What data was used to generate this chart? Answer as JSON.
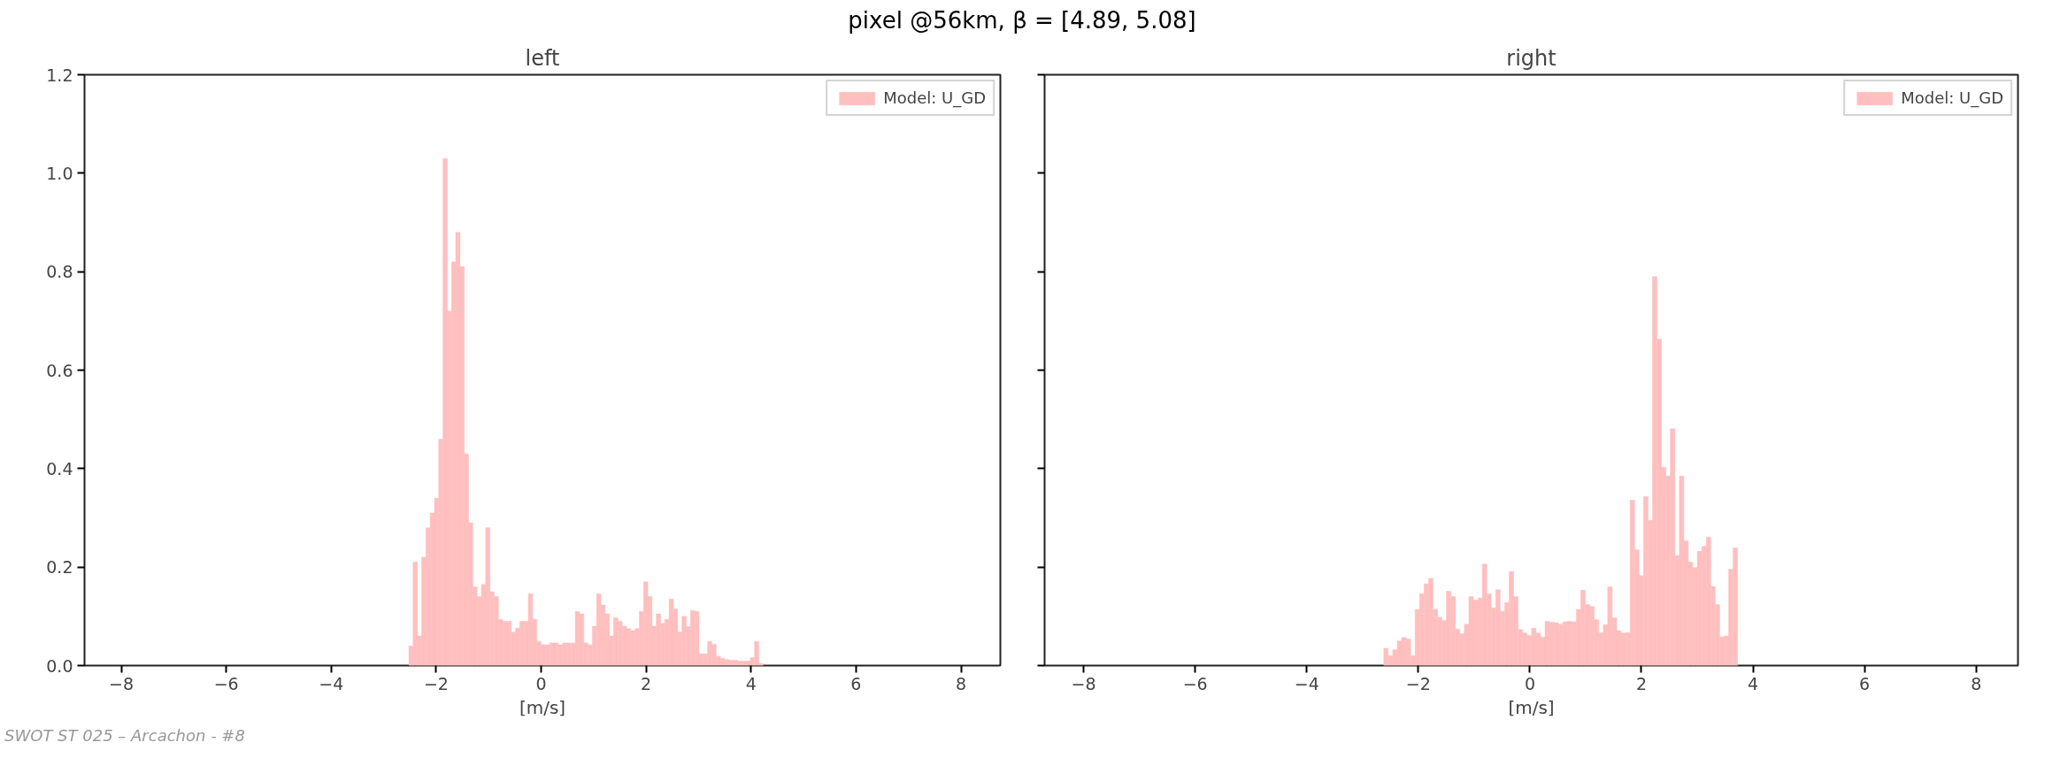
{
  "chart_data": [
    {
      "type": "histogram",
      "title": "left",
      "xlabel": "[m/s]",
      "annotations": [
        "pixel @56km, β = [4.89, 5.08]",
        "SWOT ST 025 – Arcachon - #8"
      ],
      "bins": [
        -2.52,
        -2.439,
        -2.357,
        -2.276,
        -2.195,
        -2.114,
        -2.032,
        -1.951,
        -1.87,
        -1.788,
        -1.707,
        -1.626,
        -1.544,
        -1.463,
        -1.382,
        -1.301,
        -1.219,
        -1.138,
        -1.057,
        -0.975,
        -0.894,
        -0.813,
        -0.731,
        -0.65,
        -0.569,
        -0.488,
        -0.406,
        -0.325,
        -0.244,
        -0.162,
        -0.081,
        0.0,
        0.082,
        0.163,
        0.244,
        0.326,
        0.407,
        0.488,
        0.569,
        0.651,
        0.732,
        0.813,
        0.895,
        0.976,
        1.057,
        1.139,
        1.22,
        1.301,
        1.382,
        1.464,
        1.545,
        1.626,
        1.708,
        1.789,
        1.87,
        1.952,
        2.033,
        2.114,
        2.195,
        2.277,
        2.358,
        2.439,
        2.521,
        2.602,
        2.683,
        2.765,
        2.846,
        2.927,
        3.008,
        3.09,
        3.171,
        3.252,
        3.334,
        3.415,
        3.496,
        3.577,
        3.659,
        3.74,
        3.821,
        3.903,
        3.984,
        4.065,
        4.147,
        4.228
      ],
      "series": [
        {
          "name": "Model: U_GD",
          "color": "#ffbfbf",
          "values": [
            0.04,
            0.21,
            0.06,
            0.22,
            0.28,
            0.31,
            0.34,
            0.46,
            1.03,
            0.72,
            0.82,
            0.88,
            0.81,
            0.43,
            0.29,
            0.16,
            0.14,
            0.165,
            0.28,
            0.15,
            0.14,
            0.094,
            0.09,
            0.09,
            0.068,
            0.076,
            0.09,
            0.09,
            0.146,
            0.094,
            0.049,
            0.042,
            0.042,
            0.046,
            0.046,
            0.042,
            0.046,
            0.046,
            0.046,
            0.11,
            0.105,
            0.046,
            0.042,
            0.08,
            0.146,
            0.123,
            0.105,
            0.06,
            0.097,
            0.09,
            0.08,
            0.075,
            0.071,
            0.075,
            0.11,
            0.17,
            0.14,
            0.08,
            0.105,
            0.086,
            0.094,
            0.135,
            0.115,
            0.068,
            0.1,
            0.079,
            0.112,
            0.11,
            0.024,
            0.024,
            0.049,
            0.043,
            0.019,
            0.015,
            0.012,
            0.011,
            0.011,
            0.009,
            0.009,
            0.009,
            0.016,
            0.049,
            0.004
          ]
        }
      ],
      "xlim": [
        -8.7,
        8.75
      ],
      "xticks": [
        {
          "value": -8,
          "label": "−8"
        },
        {
          "value": -6,
          "label": "−6"
        },
        {
          "value": -4,
          "label": "−4"
        },
        {
          "value": -2,
          "label": "−2"
        },
        0,
        2,
        4,
        6,
        8
      ],
      "ylim": [
        0,
        1.2
      ],
      "yticks": [
        {
          "value": 0,
          "label": "0.0"
        },
        {
          "value": 0.2,
          "label": "0.2"
        },
        {
          "value": 0.4,
          "label": "0.4"
        },
        {
          "value": 0.6,
          "label": "0.6"
        },
        {
          "value": 0.8,
          "label": "0.8"
        },
        {
          "value": 1.0,
          "label": "1.0"
        },
        {
          "value": 1.2,
          "label": "1.2"
        }
      ],
      "legend": "top right",
      "grid": false
    },
    {
      "type": "histogram",
      "title": "right",
      "xlabel": "[m/s]",
      "bins": [
        -2.62,
        -2.54,
        -2.459,
        -2.379,
        -2.299,
        -2.219,
        -2.138,
        -2.058,
        -1.978,
        -1.897,
        -1.817,
        -1.737,
        -1.656,
        -1.576,
        -1.496,
        -1.416,
        -1.335,
        -1.255,
        -1.175,
        -1.094,
        -1.014,
        -0.934,
        -0.853,
        -0.773,
        -0.693,
        -0.612,
        -0.532,
        -0.452,
        -0.372,
        -0.291,
        -0.211,
        -0.131,
        -0.05,
        0.03,
        0.11,
        0.19,
        0.271,
        0.351,
        0.431,
        0.512,
        0.592,
        0.672,
        0.753,
        0.833,
        0.913,
        0.994,
        1.074,
        1.154,
        1.234,
        1.315,
        1.395,
        1.475,
        1.556,
        1.636,
        1.716,
        1.797,
        1.877,
        1.957,
        2.037,
        2.118,
        2.198,
        2.278,
        2.359,
        2.439,
        2.519,
        2.6,
        2.68,
        2.76,
        2.84,
        2.921,
        3.001,
        3.081,
        3.162,
        3.242,
        3.322,
        3.403,
        3.483,
        3.563,
        3.643,
        3.724
      ],
      "series": [
        {
          "name": "Model: U_GD",
          "color": "#ffbfbf",
          "values": [
            0.035,
            0.02,
            0.032,
            0.05,
            0.057,
            0.054,
            0.02,
            0.114,
            0.146,
            0.166,
            0.177,
            0.114,
            0.098,
            0.091,
            0.151,
            0.14,
            0.074,
            0.065,
            0.084,
            0.14,
            0.133,
            0.137,
            0.206,
            0.146,
            0.117,
            0.154,
            0.11,
            0.128,
            0.191,
            0.14,
            0.073,
            0.066,
            0.061,
            0.076,
            0.066,
            0.058,
            0.09,
            0.088,
            0.087,
            0.084,
            0.089,
            0.09,
            0.089,
            0.114,
            0.153,
            0.124,
            0.12,
            0.093,
            0.067,
            0.083,
            0.16,
            0.097,
            0.071,
            0.066,
            0.067,
            0.336,
            0.235,
            0.183,
            0.343,
            0.295,
            0.79,
            0.663,
            0.403,
            0.385,
            0.481,
            0.223,
            0.385,
            0.253,
            0.21,
            0.199,
            0.232,
            0.242,
            0.261,
            0.161,
            0.124,
            0.058,
            0.06,
            0.196,
            0.239
          ]
        }
      ],
      "xlim": [
        -8.7,
        8.75
      ],
      "xticks": [
        {
          "value": -8,
          "label": "−8"
        },
        {
          "value": -6,
          "label": "−6"
        },
        {
          "value": -4,
          "label": "−4"
        },
        {
          "value": -2,
          "label": "−2"
        },
        0,
        2,
        4,
        6,
        8
      ],
      "ylim": [
        0,
        1.2
      ],
      "yticks": [
        0,
        0.2,
        0.4,
        0.6,
        0.8,
        1.0,
        1.2
      ],
      "tick_labels": "x",
      "legend": "top right",
      "grid": false
    }
  ]
}
